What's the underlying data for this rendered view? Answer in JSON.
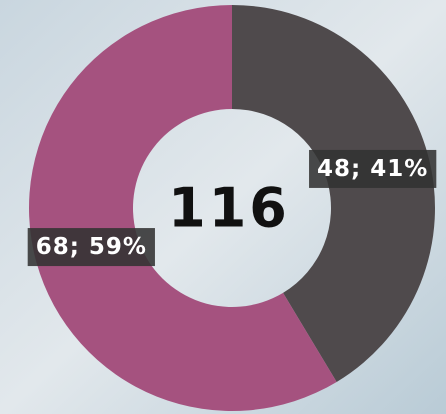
{
  "chart_data": {
    "type": "pie",
    "donut": true,
    "total": 116,
    "values": [
      48,
      68
    ],
    "value_labels": [
      "48; 41%",
      "68; 59%"
    ],
    "colors": [
      "#4f4a4c",
      "#a5527f"
    ]
  }
}
